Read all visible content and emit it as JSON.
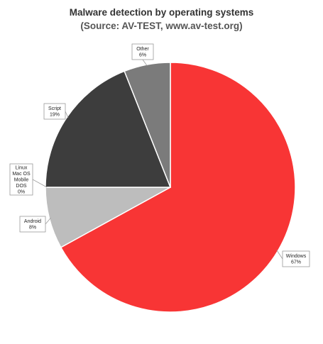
{
  "chart_data": {
    "type": "pie",
    "title": "Malware detection by operating systems",
    "subtitle": "(Source: AV-TEST, www.av-test.org)",
    "slices": [
      {
        "label": "Windows",
        "value": 67,
        "display": "67%",
        "color": "#f83535"
      },
      {
        "label": "Android",
        "value": 8,
        "display": "8%",
        "color": "#bdbdbd"
      },
      {
        "label": "Linux Mac OS Mobile DOS",
        "value": 0,
        "display": "0%",
        "color": "#ffffff"
      },
      {
        "label": "Script",
        "value": 19,
        "display": "19%",
        "color": "#3d3d3d"
      },
      {
        "label": "Other",
        "value": 6,
        "display": "6%",
        "color": "#7b7b7b"
      }
    ],
    "legend": "none",
    "start": "12 o'clock",
    "direction": "clockwise"
  }
}
